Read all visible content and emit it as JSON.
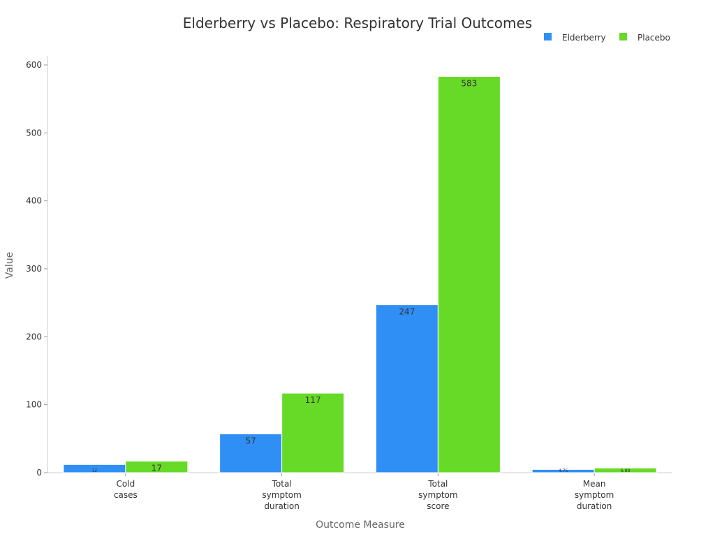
{
  "chart_data": {
    "type": "bar",
    "title": "Elderberry vs Placebo: Respiratory Trial Outcomes",
    "xlabel": "Outcome Measure",
    "ylabel": "Value",
    "ylim": [
      0,
      600
    ],
    "yticks": [
      0,
      100,
      200,
      300,
      400,
      500,
      600
    ],
    "categories": [
      [
        "Cold",
        "cases"
      ],
      [
        "Total",
        "symptom",
        "duration"
      ],
      [
        "Total",
        "symptom",
        "score"
      ],
      [
        "Mean",
        "symptom",
        "duration"
      ]
    ],
    "series": [
      {
        "name": "Elderberry",
        "color": "#2f8ff5",
        "values": [
          12,
          57,
          247,
          4.75
        ],
        "labels": [
          "12",
          "57",
          "247",
          "4.75"
        ]
      },
      {
        "name": "Placebo",
        "color": "#66da26",
        "values": [
          17,
          117,
          583,
          6.88
        ],
        "labels": [
          "17",
          "117",
          "583",
          "6.88"
        ]
      }
    ],
    "legend": "top-right",
    "grid": false
  }
}
